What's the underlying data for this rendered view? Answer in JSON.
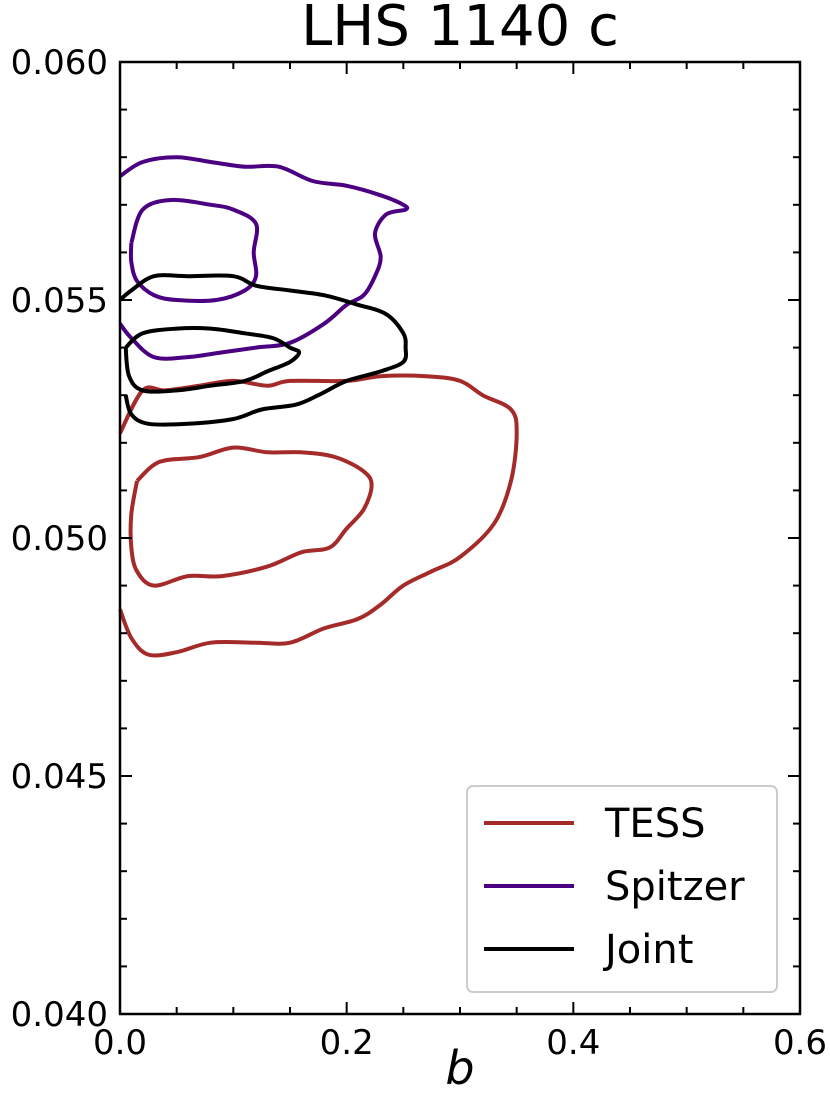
{
  "chart_data": {
    "type": "line",
    "title": "LHS 1140 c",
    "xlabel": "b",
    "ylabel": "",
    "xlim": [
      0.0,
      0.6
    ],
    "ylim": [
      0.04,
      0.06
    ],
    "x_ticks": [
      "0.0",
      "0.2",
      "0.4",
      "0.6"
    ],
    "y_ticks": [
      "0.040",
      "0.045",
      "0.050",
      "0.055",
      "0.060"
    ],
    "grid": false,
    "legend_position": "bottom-right",
    "series": [
      {
        "name": "TESS",
        "color": "#a52a2a",
        "contours": [
          [
            [
              0.0,
              0.0485
            ],
            [
              0.01,
              0.0479
            ],
            [
              0.025,
              0.04755
            ],
            [
              0.05,
              0.0476
            ],
            [
              0.08,
              0.0478
            ],
            [
              0.12,
              0.0478
            ],
            [
              0.15,
              0.0478
            ],
            [
              0.18,
              0.0481
            ],
            [
              0.21,
              0.0483
            ],
            [
              0.23,
              0.0486
            ],
            [
              0.25,
              0.049
            ],
            [
              0.275,
              0.0493
            ],
            [
              0.3,
              0.0496
            ],
            [
              0.33,
              0.0503
            ],
            [
              0.345,
              0.0512
            ],
            [
              0.35,
              0.0522
            ],
            [
              0.345,
              0.0527
            ],
            [
              0.32,
              0.053
            ],
            [
              0.3,
              0.0533
            ],
            [
              0.27,
              0.0534
            ],
            [
              0.23,
              0.0534
            ],
            [
              0.2,
              0.0533
            ],
            [
              0.15,
              0.0533
            ],
            [
              0.13,
              0.0532
            ],
            [
              0.1,
              0.0533
            ],
            [
              0.07,
              0.0532
            ],
            [
              0.04,
              0.0531
            ],
            [
              0.02,
              0.0531
            ],
            [
              0.0,
              0.0522
            ]
          ],
          [
            [
              0.015,
              0.0512
            ],
            [
              0.035,
              0.0516
            ],
            [
              0.07,
              0.0517
            ],
            [
              0.1,
              0.0519
            ],
            [
              0.13,
              0.0518
            ],
            [
              0.16,
              0.0518
            ],
            [
              0.19,
              0.0517
            ],
            [
              0.215,
              0.0514
            ],
            [
              0.222,
              0.0511
            ],
            [
              0.215,
              0.0506
            ],
            [
              0.2,
              0.0502
            ],
            [
              0.185,
              0.0498
            ],
            [
              0.16,
              0.0497
            ],
            [
              0.13,
              0.0494
            ],
            [
              0.09,
              0.0492
            ],
            [
              0.06,
              0.0492
            ],
            [
              0.03,
              0.049
            ],
            [
              0.015,
              0.0493
            ],
            [
              0.01,
              0.0498
            ],
            [
              0.01,
              0.0505
            ],
            [
              0.015,
              0.0512
            ]
          ]
        ]
      },
      {
        "name": "Spitzer",
        "color": "#4b0082",
        "contours": [
          [
            [
              0.0,
              0.0576
            ],
            [
              0.02,
              0.0579
            ],
            [
              0.05,
              0.058
            ],
            [
              0.08,
              0.0579
            ],
            [
              0.11,
              0.0578
            ],
            [
              0.14,
              0.0578
            ],
            [
              0.17,
              0.0575
            ],
            [
              0.2,
              0.0574
            ],
            [
              0.23,
              0.0572
            ],
            [
              0.25,
              0.057
            ],
            [
              0.252,
              0.0569
            ],
            [
              0.235,
              0.0568
            ],
            [
              0.225,
              0.0564
            ],
            [
              0.23,
              0.0559
            ],
            [
              0.225,
              0.0555
            ],
            [
              0.215,
              0.0551
            ],
            [
              0.2,
              0.0549
            ],
            [
              0.18,
              0.0545
            ],
            [
              0.15,
              0.0541
            ],
            [
              0.12,
              0.054
            ],
            [
              0.09,
              0.0539
            ],
            [
              0.06,
              0.0538
            ],
            [
              0.03,
              0.0538
            ],
            [
              0.01,
              0.0542
            ],
            [
              0.0,
              0.0545
            ]
          ],
          [
            [
              0.01,
              0.0562
            ],
            [
              0.02,
              0.0569
            ],
            [
              0.045,
              0.0571
            ],
            [
              0.08,
              0.057
            ],
            [
              0.1,
              0.0569
            ],
            [
              0.12,
              0.0566
            ],
            [
              0.118,
              0.056
            ],
            [
              0.12,
              0.0555
            ],
            [
              0.11,
              0.0552
            ],
            [
              0.085,
              0.055
            ],
            [
              0.05,
              0.055
            ],
            [
              0.03,
              0.0551
            ],
            [
              0.015,
              0.0554
            ],
            [
              0.01,
              0.0558
            ],
            [
              0.01,
              0.0562
            ]
          ]
        ]
      },
      {
        "name": "Joint",
        "color": "#000000",
        "contours": [
          [
            [
              0.0,
              0.055
            ],
            [
              0.01,
              0.0552
            ],
            [
              0.03,
              0.0555
            ],
            [
              0.06,
              0.0555
            ],
            [
              0.1,
              0.0555
            ],
            [
              0.12,
              0.0553
            ],
            [
              0.15,
              0.0552
            ],
            [
              0.18,
              0.0551
            ],
            [
              0.21,
              0.0549
            ],
            [
              0.235,
              0.0547
            ],
            [
              0.25,
              0.0543
            ],
            [
              0.252,
              0.054
            ],
            [
              0.25,
              0.0537
            ],
            [
              0.23,
              0.0535
            ],
            [
              0.2,
              0.0533
            ],
            [
              0.175,
              0.053
            ],
            [
              0.155,
              0.0528
            ],
            [
              0.125,
              0.0527
            ],
            [
              0.1,
              0.0525
            ],
            [
              0.06,
              0.0524
            ],
            [
              0.025,
              0.0524
            ],
            [
              0.01,
              0.0526
            ],
            [
              0.005,
              0.053
            ]
          ],
          [
            [
              0.005,
              0.054
            ],
            [
              0.02,
              0.0543
            ],
            [
              0.05,
              0.0544
            ],
            [
              0.08,
              0.0544
            ],
            [
              0.11,
              0.0543
            ],
            [
              0.135,
              0.0542
            ],
            [
              0.15,
              0.054
            ],
            [
              0.158,
              0.0539
            ],
            [
              0.15,
              0.0537
            ],
            [
              0.13,
              0.0535
            ],
            [
              0.11,
              0.0533
            ],
            [
              0.08,
              0.0532
            ],
            [
              0.05,
              0.0531
            ],
            [
              0.02,
              0.0531
            ],
            [
              0.008,
              0.0534
            ],
            [
              0.005,
              0.054
            ]
          ]
        ]
      }
    ]
  }
}
